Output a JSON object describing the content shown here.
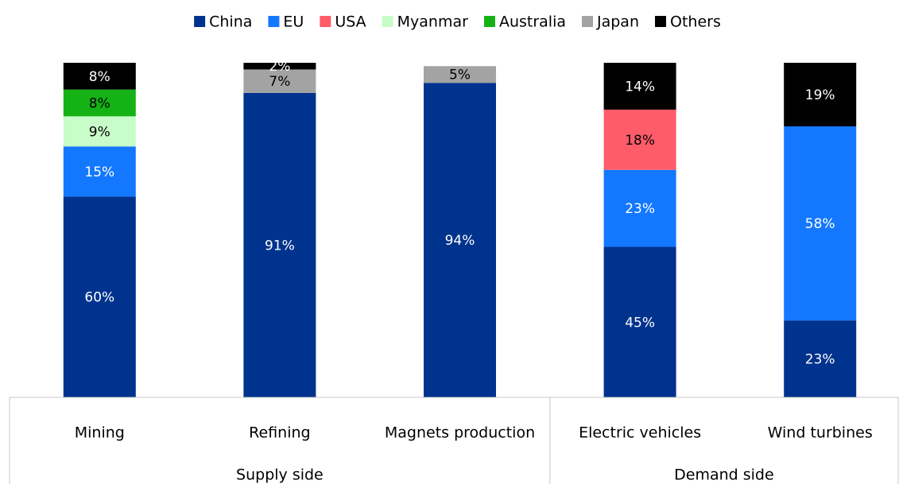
{
  "chart_data": {
    "type": "stacked_bar",
    "categories": [
      "Mining",
      "Refining",
      "Magnets production",
      "Electric vehicles",
      "Wind turbines"
    ],
    "category_groups": [
      "Supply side",
      "Supply side",
      "Supply side",
      "Demand side",
      "Demand side"
    ],
    "ylim": [
      0,
      100
    ],
    "legend": "top",
    "series": [
      {
        "name": "China",
        "color": "#00338d",
        "values": [
          60,
          91,
          94,
          45,
          23
        ],
        "value_labels": [
          "60%",
          "91%",
          "94%",
          "45%",
          "23%"
        ]
      },
      {
        "name": "EU",
        "color": "#1478ff",
        "values": [
          15,
          null,
          null,
          23,
          58
        ],
        "value_labels": [
          "15%",
          null,
          null,
          "23%",
          "58%"
        ]
      },
      {
        "name": "USA",
        "color": "#ff5c6a",
        "values": [
          null,
          null,
          null,
          18,
          null
        ],
        "value_labels": [
          null,
          null,
          null,
          "18%",
          null
        ]
      },
      {
        "name": "Myanmar",
        "color": "#c8fcc8",
        "values": [
          9,
          null,
          null,
          null,
          null
        ],
        "value_labels": [
          "9%",
          null,
          null,
          null,
          null
        ]
      },
      {
        "name": "Australia",
        "color": "#15b215",
        "values": [
          8,
          null,
          null,
          null,
          null
        ],
        "value_labels": [
          "8%",
          null,
          null,
          null,
          null
        ]
      },
      {
        "name": "Japan",
        "color": "#a3a3a3",
        "values": [
          null,
          7,
          5,
          null,
          null
        ],
        "value_labels": [
          null,
          "7%",
          "5%",
          null,
          null
        ]
      },
      {
        "name": "Others",
        "color": "#000000",
        "values": [
          8,
          2,
          null,
          14,
          19
        ],
        "value_labels": [
          "8%",
          "2%",
          null,
          "14%",
          "19%"
        ]
      }
    ]
  }
}
